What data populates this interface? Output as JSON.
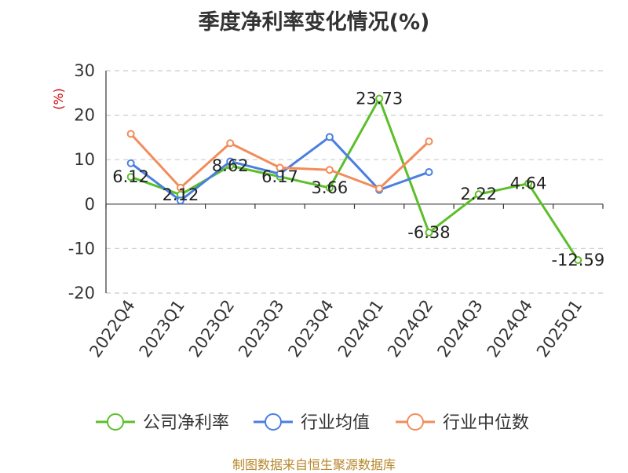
{
  "chart_data": {
    "type": "line",
    "title": "季度净利率变化情况(%)",
    "ylabel": "(%)",
    "ylim": [
      -20,
      30
    ],
    "yticks": [
      30,
      20,
      10,
      0,
      -10,
      -20
    ],
    "grid": true,
    "legend_position": "bottom",
    "categories": [
      "2022Q4",
      "2023Q1",
      "2023Q2",
      "2023Q3",
      "2023Q4",
      "2024Q1",
      "2024Q2",
      "2024Q3",
      "2024Q4",
      "2025Q1"
    ],
    "series": [
      {
        "name": "公司净利率",
        "color": "#5cbf2a",
        "values": [
          6.12,
          2.12,
          8.62,
          6.17,
          3.66,
          23.73,
          -6.38,
          2.22,
          4.64,
          -12.59
        ],
        "labels": [
          "6.12",
          "2.12",
          "8.62",
          "6.17",
          "3.66",
          "23.73",
          "-6.38",
          "2.22",
          "4.64",
          "-12.59"
        ]
      },
      {
        "name": "行业均值",
        "color": "#4a7fe0",
        "values": [
          9.2,
          0.8,
          9.6,
          6.8,
          15.1,
          3.2,
          7.2,
          null,
          null,
          null
        ]
      },
      {
        "name": "行业中位数",
        "color": "#f28c5a",
        "values": [
          15.8,
          3.7,
          13.7,
          8.2,
          7.7,
          3.5,
          14.1,
          null,
          null,
          null
        ]
      }
    ]
  },
  "footer": "制图数据来自恒生聚源数据库"
}
